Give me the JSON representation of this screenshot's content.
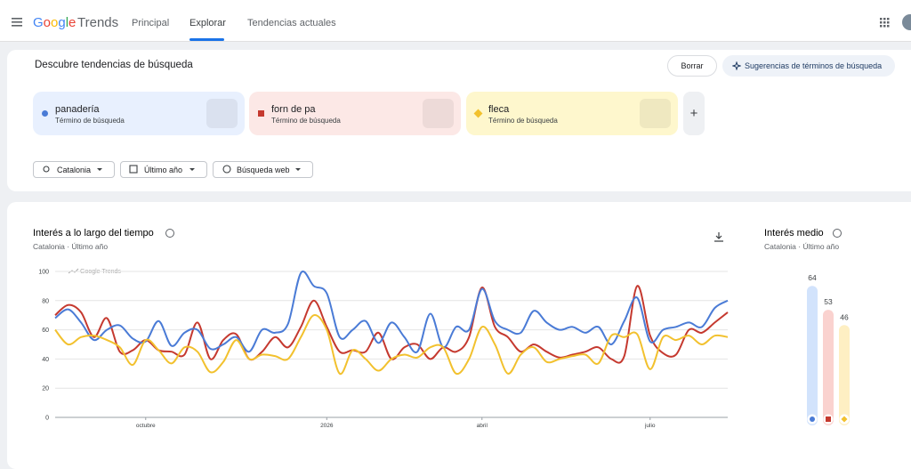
{
  "header": {
    "logo_google": "Google",
    "logo_trends": "Trends",
    "nav": [
      "Principal",
      "Explorar",
      "Tendencias actuales"
    ]
  },
  "search": {
    "title": "Descubre tendencias de búsqueda",
    "clear": "Borrar",
    "suggest": "Sugerencias de términos de búsqueda",
    "terms": [
      {
        "name": "panadería",
        "subtitle": "Término de búsqueda"
      },
      {
        "name": "forn de pa",
        "subtitle": "Término de búsqueda"
      },
      {
        "name": "fleca",
        "subtitle": "Término de búsqueda"
      }
    ],
    "add": "+",
    "filters": [
      "Catalonia",
      "Último año",
      "Búsqueda web"
    ]
  },
  "chart_data": [
    {
      "type": "line",
      "title": "Interés a lo largo del tiempo",
      "subtitle": "Catalonia · Último año",
      "watermark": "Google Trends",
      "categories": [
        null,
        null,
        null,
        null,
        null,
        null,
        null,
        "octubre",
        null,
        null,
        null,
        null,
        null,
        null,
        null,
        null,
        null,
        null,
        null,
        null,
        null,
        "2026",
        null,
        null,
        null,
        null,
        null,
        null,
        null,
        null,
        null,
        null,
        null,
        "abril",
        null,
        null,
        null,
        null,
        null,
        null,
        null,
        null,
        null,
        null,
        null,
        null,
        "julio",
        null,
        null,
        null,
        null,
        null,
        null
      ],
      "series": [
        {
          "name": "panadería",
          "color": "#4a7bd6",
          "values": [
            68,
            74,
            65,
            53,
            60,
            63,
            54,
            52,
            66,
            49,
            58,
            60,
            47,
            50,
            55,
            45,
            60,
            58,
            64,
            99,
            90,
            85,
            55,
            60,
            66,
            51,
            65,
            55,
            45,
            71,
            48,
            62,
            60,
            88,
            66,
            60,
            58,
            73,
            65,
            60,
            62,
            58,
            62,
            50,
            66,
            82,
            52,
            60,
            62,
            65,
            62,
            75,
            80
          ]
        },
        {
          "name": "forn de pa",
          "color": "#c5392f",
          "values": [
            70,
            77,
            72,
            55,
            68,
            45,
            46,
            53,
            46,
            45,
            43,
            65,
            40,
            53,
            57,
            40,
            45,
            55,
            48,
            62,
            80,
            62,
            45,
            46,
            45,
            58,
            40,
            48,
            50,
            40,
            48,
            45,
            55,
            89,
            62,
            55,
            45,
            50,
            45,
            41,
            43,
            45,
            48,
            40,
            42,
            90,
            56,
            44,
            43,
            60,
            58,
            65,
            72
          ]
        },
        {
          "name": "fleca",
          "color": "#f2c12e",
          "values": [
            60,
            50,
            55,
            56,
            53,
            48,
            36,
            53,
            46,
            37,
            48,
            45,
            31,
            38,
            53,
            40,
            43,
            42,
            40,
            55,
            70,
            60,
            30,
            46,
            40,
            32,
            40,
            43,
            41,
            48,
            48,
            30,
            40,
            62,
            50,
            30,
            43,
            48,
            38,
            40,
            42,
            43,
            37,
            56,
            55,
            57,
            33,
            55,
            53,
            56,
            50,
            56,
            55
          ]
        }
      ],
      "ylim": [
        0,
        100
      ],
      "yticks": [
        0,
        20,
        40,
        60,
        80,
        100
      ],
      "grid": true
    },
    {
      "type": "bar",
      "title": "Interés medio",
      "subtitle": "Catalonia · Último año",
      "values": [
        64,
        53,
        46
      ],
      "colors": [
        "#d2e3fc",
        "#fad2cf",
        "#feefc3"
      ],
      "ylim": [
        0,
        100
      ]
    }
  ]
}
